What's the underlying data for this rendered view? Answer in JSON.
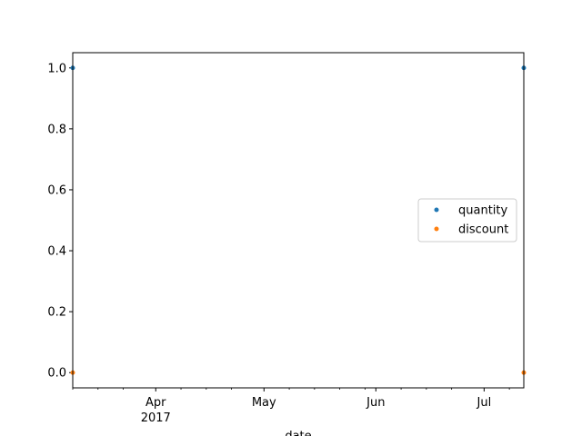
{
  "chart_data": {
    "type": "scatter",
    "title": "",
    "xlabel": "date",
    "ylabel": "",
    "x_axis_kind": "date",
    "xlim": [
      "2017-03-09",
      "2017-07-12"
    ],
    "ylim": [
      -0.05,
      1.05
    ],
    "grid": false,
    "legend_placement": "center-right",
    "x_major_ticks": [
      {
        "date": "2017-04-01",
        "label": "Apr",
        "sublabel": "2017"
      },
      {
        "date": "2017-05-01",
        "label": "May",
        "sublabel": ""
      },
      {
        "date": "2017-06-01",
        "label": "Jun",
        "sublabel": ""
      },
      {
        "date": "2017-07-01",
        "label": "Jul",
        "sublabel": ""
      }
    ],
    "x_minor_ticks": [
      "2017-03-09",
      "2017-03-16",
      "2017-03-23",
      "2017-04-08",
      "2017-04-15",
      "2017-04-22",
      "2017-05-08",
      "2017-05-15",
      "2017-05-22",
      "2017-05-29",
      "2017-06-08",
      "2017-06-15",
      "2017-06-22",
      "2017-07-08"
    ],
    "y_ticks": [
      {
        "value": 0.0,
        "label": "0.0"
      },
      {
        "value": 0.2,
        "label": "0.2"
      },
      {
        "value": 0.4,
        "label": "0.4"
      },
      {
        "value": 0.6,
        "label": "0.6"
      },
      {
        "value": 0.8,
        "label": "0.8"
      },
      {
        "value": 1.0,
        "label": "1.0"
      }
    ],
    "x": [
      "2017-03-09",
      "2017-07-12"
    ],
    "series": [
      {
        "name": "quantity",
        "color": "#1f77b4",
        "values": [
          1.0,
          1.0
        ]
      },
      {
        "name": "discount",
        "color": "#ff7f0e",
        "values": [
          0.0,
          0.0
        ]
      }
    ]
  }
}
